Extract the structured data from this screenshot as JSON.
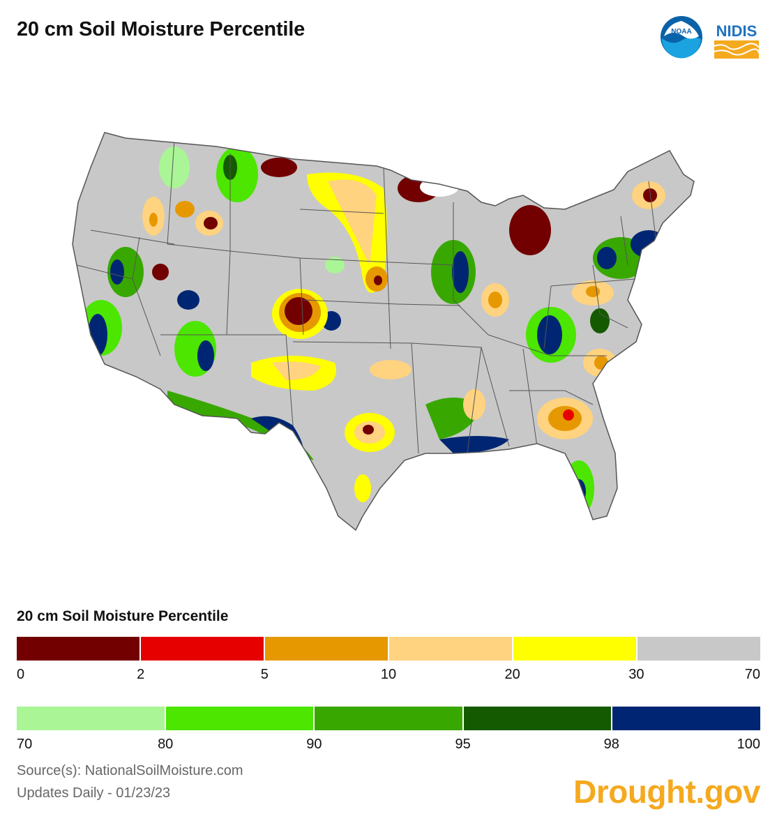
{
  "header": {
    "title": "20 cm Soil Moisture Percentile"
  },
  "logos": {
    "noaa": {
      "text": "NOAA",
      "icon": "noaa-logo-icon",
      "color": "#0a62a9"
    },
    "nidis": {
      "text": "NIDIS",
      "icon": "nidis-logo-icon",
      "color": "#1e73be",
      "accent": "#f5a91f"
    }
  },
  "map": {
    "icon": "us-soil-moisture-map",
    "base_color": "#c8c8c8"
  },
  "legend": {
    "title": "20 cm Soil Moisture Percentile",
    "dry_scale": {
      "colors": [
        "#730000",
        "#e60000",
        "#e69800",
        "#ffd37f",
        "#ffff00",
        "#c8c8c8"
      ],
      "ticks": [
        "0",
        "2",
        "5",
        "10",
        "20",
        "30",
        "70"
      ]
    },
    "wet_scale": {
      "colors": [
        "#aaf596",
        "#4ce600",
        "#38a800",
        "#145a00",
        "#002673"
      ],
      "ticks": [
        "70",
        "80",
        "90",
        "95",
        "98",
        "100"
      ]
    }
  },
  "footer": {
    "source": "Source(s): NationalSoilMoisture.com",
    "updates": "Updates Daily - 01/23/23",
    "brand": "Drought.gov"
  }
}
